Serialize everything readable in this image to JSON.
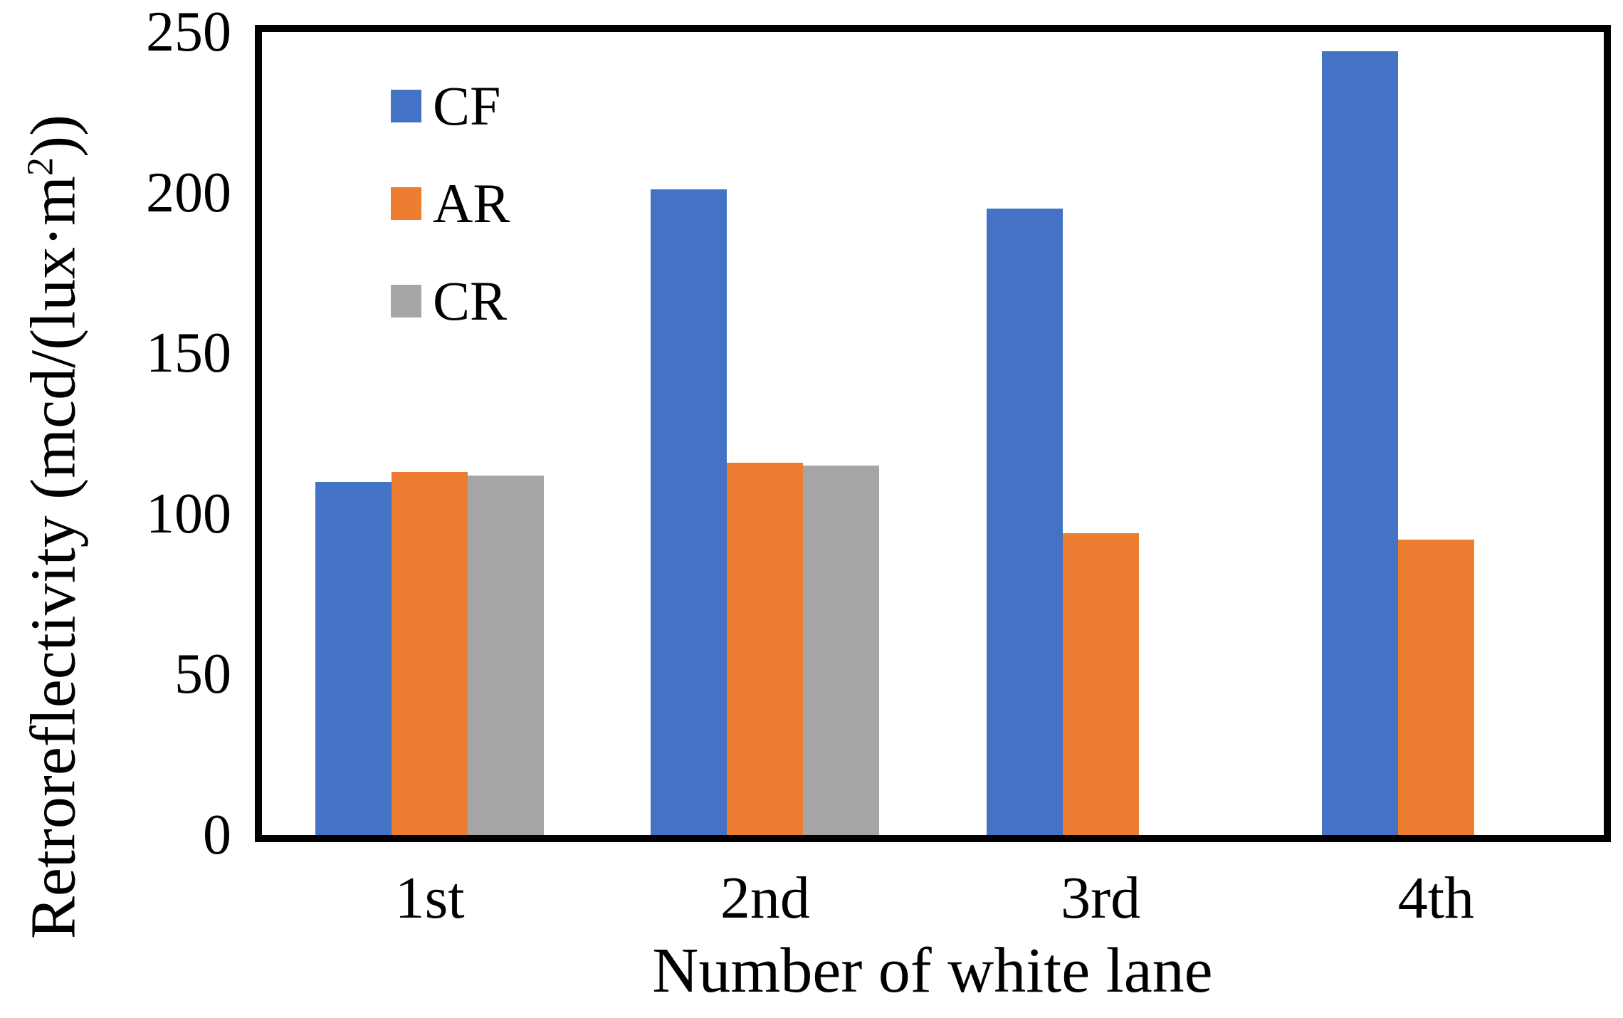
{
  "figure": {
    "y_axis_title_prefix": "Retroreflectivity (mcd/(lux·m",
    "y_axis_title_sup": "2",
    "y_axis_title_suffix": "))"
  },
  "chart_data": {
    "type": "bar",
    "title": "",
    "xlabel": "Number of white lane",
    "ylabel": "Retroreflectivity (mcd/(lux·m2))",
    "categories": [
      "1st",
      "2nd",
      "3rd",
      "4th"
    ],
    "series": [
      {
        "name": "CF",
        "color": "#4472C4",
        "values": [
          110,
          201,
          195,
          244
        ]
      },
      {
        "name": "AR",
        "color": "#ED7D31",
        "values": [
          113,
          116,
          94,
          92
        ]
      },
      {
        "name": "CR",
        "color": "#A6A6A6",
        "values": [
          112,
          115,
          0,
          0
        ]
      }
    ],
    "ylim": [
      0,
      250
    ],
    "yticks": [
      0,
      50,
      100,
      150,
      200,
      250
    ],
    "grid": false,
    "frame": true,
    "legend_position": "inside-top-left",
    "axis_color": "#000000",
    "frame_thickness_px": 10
  }
}
